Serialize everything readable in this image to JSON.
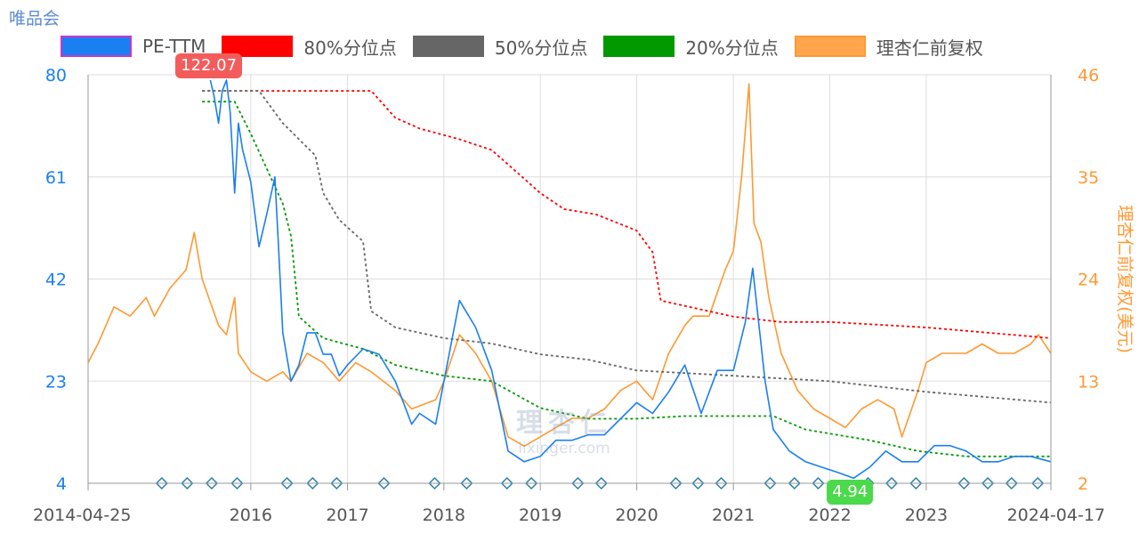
{
  "header": {
    "title": "唯品会"
  },
  "legend": [
    {
      "label": "PE-TTM",
      "color": "#1a7ff0",
      "border": "#cc33cc",
      "dashed": false
    },
    {
      "label": "80%分位点",
      "color": "#ff0000",
      "border": "#ff0000",
      "dashed": true
    },
    {
      "label": "50%分位点",
      "color": "#666666",
      "border": "#666666",
      "dashed": true
    },
    {
      "label": "20%分位点",
      "color": "#009900",
      "border": "#009900",
      "dashed": true
    },
    {
      "label": "理杏仁前复权",
      "color": "#ffa64d",
      "border": "#ff9933",
      "dashed": false
    }
  ],
  "badges": {
    "max": "122.07",
    "min": "4.94"
  },
  "watermark": {
    "cn": "理杏仁",
    "url": "lixinger.com"
  },
  "chart_data": {
    "type": "line",
    "x_start": "2014-04-25",
    "x_end": "2024-04-17",
    "x_ticks": [
      "2014-04-25",
      "2016",
      "2017",
      "2018",
      "2019",
      "2020",
      "2021",
      "2022",
      "2023",
      "2024-04-17"
    ],
    "y_left": {
      "ticks": [
        4,
        23,
        42,
        61,
        80
      ],
      "range": [
        4,
        80
      ],
      "color": "#1a7ff0"
    },
    "y_right": {
      "label": "理杏仁前复权(美元)",
      "ticks": [
        2,
        13,
        24,
        35,
        46
      ],
      "range": [
        2,
        46
      ],
      "color": "#ff9933"
    },
    "series": [
      {
        "name": "PE-TTM",
        "axis": "left",
        "color": "#1a7ff0",
        "points": [
          [
            "2015-08-01",
            79
          ],
          [
            "2015-08-15",
            76
          ],
          [
            "2015-09-01",
            71
          ],
          [
            "2015-09-15",
            77
          ],
          [
            "2015-10-01",
            79
          ],
          [
            "2015-10-15",
            73
          ],
          [
            "2015-11-01",
            58
          ],
          [
            "2015-11-15",
            71
          ],
          [
            "2015-12-01",
            66
          ],
          [
            "2016-01-01",
            60
          ],
          [
            "2016-02-01",
            48
          ],
          [
            "2016-03-01",
            54
          ],
          [
            "2016-04-01",
            61
          ],
          [
            "2016-04-15",
            48
          ],
          [
            "2016-05-01",
            32
          ],
          [
            "2016-06-01",
            23
          ],
          [
            "2016-07-01",
            26
          ],
          [
            "2016-08-01",
            32
          ],
          [
            "2016-09-01",
            32
          ],
          [
            "2016-10-01",
            28
          ],
          [
            "2016-11-01",
            28
          ],
          [
            "2016-12-01",
            24
          ],
          [
            "2017-01-01",
            26
          ],
          [
            "2017-03-01",
            29
          ],
          [
            "2017-05-01",
            28
          ],
          [
            "2017-07-01",
            23
          ],
          [
            "2017-09-01",
            15
          ],
          [
            "2017-10-01",
            17
          ],
          [
            "2017-12-01",
            15
          ],
          [
            "2018-01-01",
            23
          ],
          [
            "2018-03-01",
            38
          ],
          [
            "2018-05-01",
            33
          ],
          [
            "2018-07-01",
            25
          ],
          [
            "2018-09-01",
            10
          ],
          [
            "2018-11-01",
            8
          ],
          [
            "2019-01-01",
            9
          ],
          [
            "2019-03-01",
            12
          ],
          [
            "2019-05-01",
            12
          ],
          [
            "2019-07-01",
            13
          ],
          [
            "2019-09-01",
            13
          ],
          [
            "2019-11-01",
            16
          ],
          [
            "2020-01-01",
            19
          ],
          [
            "2020-03-01",
            17
          ],
          [
            "2020-05-01",
            21
          ],
          [
            "2020-07-01",
            26
          ],
          [
            "2020-09-01",
            17
          ],
          [
            "2020-11-01",
            25
          ],
          [
            "2021-01-01",
            25
          ],
          [
            "2021-02-15",
            34
          ],
          [
            "2021-03-15",
            44
          ],
          [
            "2021-05-01",
            23
          ],
          [
            "2021-06-01",
            14
          ],
          [
            "2021-08-01",
            10
          ],
          [
            "2021-10-01",
            8
          ],
          [
            "2021-12-01",
            7
          ],
          [
            "2022-02-01",
            6
          ],
          [
            "2022-04-01",
            4.94
          ],
          [
            "2022-06-01",
            7
          ],
          [
            "2022-08-01",
            10
          ],
          [
            "2022-10-01",
            8
          ],
          [
            "2022-12-01",
            8
          ],
          [
            "2023-02-01",
            11
          ],
          [
            "2023-04-01",
            11
          ],
          [
            "2023-06-01",
            10
          ],
          [
            "2023-08-01",
            8
          ],
          [
            "2023-10-01",
            8
          ],
          [
            "2023-12-01",
            9
          ],
          [
            "2024-02-01",
            9
          ],
          [
            "2024-04-17",
            8
          ]
        ]
      },
      {
        "name": "80%分位点",
        "axis": "left",
        "color": "#ff0000",
        "dashed": true,
        "points": [
          [
            "2015-07-01",
            77
          ],
          [
            "2017-04-01",
            77
          ],
          [
            "2017-07-01",
            72
          ],
          [
            "2017-10-01",
            70
          ],
          [
            "2018-03-01",
            68
          ],
          [
            "2018-07-01",
            66
          ],
          [
            "2018-10-01",
            62
          ],
          [
            "2019-01-01",
            58
          ],
          [
            "2019-04-01",
            55
          ],
          [
            "2019-08-01",
            54
          ],
          [
            "2020-01-01",
            51
          ],
          [
            "2020-03-01",
            47
          ],
          [
            "2020-04-01",
            38
          ],
          [
            "2020-07-01",
            37
          ],
          [
            "2021-01-01",
            35
          ],
          [
            "2021-07-01",
            34
          ],
          [
            "2022-01-01",
            34
          ],
          [
            "2023-01-01",
            33
          ],
          [
            "2024-04-17",
            31
          ]
        ]
      },
      {
        "name": "50%分位点",
        "axis": "left",
        "color": "#666666",
        "dashed": true,
        "points": [
          [
            "2015-07-01",
            77
          ],
          [
            "2016-02-01",
            77
          ],
          [
            "2016-05-01",
            71
          ],
          [
            "2016-09-01",
            65
          ],
          [
            "2016-10-01",
            58
          ],
          [
            "2016-12-01",
            53
          ],
          [
            "2017-03-01",
            49
          ],
          [
            "2017-04-01",
            36
          ],
          [
            "2017-07-01",
            33
          ],
          [
            "2018-01-01",
            31
          ],
          [
            "2018-07-01",
            30
          ],
          [
            "2019-01-01",
            28
          ],
          [
            "2019-07-01",
            27
          ],
          [
            "2020-01-01",
            25
          ],
          [
            "2021-01-01",
            24
          ],
          [
            "2022-01-01",
            23
          ],
          [
            "2023-01-01",
            21
          ],
          [
            "2024-04-17",
            19
          ]
        ]
      },
      {
        "name": "20%分位点",
        "axis": "left",
        "color": "#009900",
        "dashed": true,
        "points": [
          [
            "2015-07-01",
            75
          ],
          [
            "2015-11-01",
            75
          ],
          [
            "2016-01-01",
            69
          ],
          [
            "2016-05-01",
            56
          ],
          [
            "2016-06-01",
            50
          ],
          [
            "2016-07-01",
            35
          ],
          [
            "2016-10-01",
            31
          ],
          [
            "2017-03-01",
            29
          ],
          [
            "2017-07-01",
            26
          ],
          [
            "2018-01-01",
            24
          ],
          [
            "2018-07-01",
            23
          ],
          [
            "2019-01-01",
            18
          ],
          [
            "2019-07-01",
            16
          ],
          [
            "2020-01-01",
            16
          ],
          [
            "2020-07-01",
            16.5
          ],
          [
            "2021-06-01",
            16.5
          ],
          [
            "2021-10-01",
            14
          ],
          [
            "2022-06-01",
            12
          ],
          [
            "2022-12-01",
            10
          ],
          [
            "2023-06-01",
            9
          ],
          [
            "2024-04-17",
            9
          ]
        ]
      },
      {
        "name": "理杏仁前复权",
        "axis": "right",
        "color": "#ff9933",
        "points": [
          [
            "2014-04-25",
            15
          ],
          [
            "2014-06-01",
            17
          ],
          [
            "2014-08-01",
            21
          ],
          [
            "2014-10-01",
            20
          ],
          [
            "2014-12-01",
            22
          ],
          [
            "2015-01-01",
            20
          ],
          [
            "2015-03-01",
            23
          ],
          [
            "2015-05-01",
            25
          ],
          [
            "2015-06-01",
            29
          ],
          [
            "2015-07-01",
            24
          ],
          [
            "2015-09-01",
            19
          ],
          [
            "2015-10-01",
            18
          ],
          [
            "2015-11-01",
            22
          ],
          [
            "2015-11-15",
            16
          ],
          [
            "2016-01-01",
            14
          ],
          [
            "2016-03-01",
            13
          ],
          [
            "2016-05-01",
            14
          ],
          [
            "2016-06-01",
            13
          ],
          [
            "2016-08-01",
            16
          ],
          [
            "2016-10-01",
            15
          ],
          [
            "2016-12-01",
            13
          ],
          [
            "2017-02-01",
            15
          ],
          [
            "2017-04-01",
            14
          ],
          [
            "2017-07-01",
            12
          ],
          [
            "2017-09-01",
            10
          ],
          [
            "2017-12-01",
            11
          ],
          [
            "2018-01-01",
            13
          ],
          [
            "2018-03-01",
            18
          ],
          [
            "2018-05-01",
            16
          ],
          [
            "2018-07-01",
            13
          ],
          [
            "2018-09-01",
            7
          ],
          [
            "2018-11-01",
            6
          ],
          [
            "2019-01-01",
            7
          ],
          [
            "2019-03-01",
            8
          ],
          [
            "2019-05-01",
            9
          ],
          [
            "2019-07-01",
            9
          ],
          [
            "2019-09-01",
            10
          ],
          [
            "2019-11-01",
            12
          ],
          [
            "2020-01-01",
            13
          ],
          [
            "2020-03-01",
            11
          ],
          [
            "2020-05-01",
            16
          ],
          [
            "2020-07-01",
            19
          ],
          [
            "2020-08-01",
            20
          ],
          [
            "2020-10-01",
            20
          ],
          [
            "2020-12-01",
            25
          ],
          [
            "2021-01-01",
            27
          ],
          [
            "2021-02-01",
            35
          ],
          [
            "2021-03-01",
            45
          ],
          [
            "2021-03-20",
            30
          ],
          [
            "2021-04-15",
            28
          ],
          [
            "2021-05-15",
            22
          ],
          [
            "2021-07-01",
            16
          ],
          [
            "2021-09-01",
            12
          ],
          [
            "2021-11-01",
            10
          ],
          [
            "2022-01-01",
            9
          ],
          [
            "2022-03-01",
            8
          ],
          [
            "2022-05-01",
            10
          ],
          [
            "2022-07-01",
            11
          ],
          [
            "2022-09-01",
            10
          ],
          [
            "2022-10-01",
            7
          ],
          [
            "2022-12-01",
            12
          ],
          [
            "2023-01-01",
            15
          ],
          [
            "2023-03-01",
            16
          ],
          [
            "2023-06-01",
            16
          ],
          [
            "2023-08-01",
            17
          ],
          [
            "2023-10-01",
            16
          ],
          [
            "2023-12-01",
            16
          ],
          [
            "2024-02-01",
            17
          ],
          [
            "2024-03-01",
            18
          ],
          [
            "2024-04-17",
            16
          ]
        ]
      }
    ],
    "markers": [
      "2015-01-29",
      "2015-05-05",
      "2015-08-06",
      "2015-11-10",
      "2016-05-17",
      "2016-08-22",
      "2016-11-21",
      "2017-05-19",
      "2017-11-27",
      "2018-03-28",
      "2018-08-28",
      "2018-11-28",
      "2019-05-23",
      "2019-08-20",
      "2020-05-28",
      "2020-08-20",
      "2020-11-16",
      "2021-05-20",
      "2021-08-20",
      "2021-11-18",
      "2022-05-26",
      "2022-08-23",
      "2022-11-23",
      "2023-05-24",
      "2023-08-22",
      "2023-11-20",
      "2024-02-27"
    ],
    "grid": true,
    "legend_position": "top"
  }
}
